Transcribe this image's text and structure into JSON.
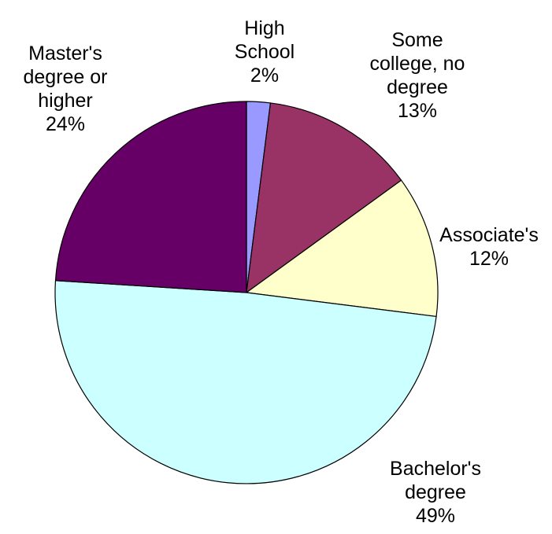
{
  "chart_data": {
    "type": "pie",
    "title": "",
    "start_angle_deg": 0,
    "direction": "clockwise",
    "slices": [
      {
        "label_lines": [
          "High",
          "School"
        ],
        "label": "High School",
        "value": 2,
        "value_label": "2%",
        "color": "#9999ff"
      },
      {
        "label_lines": [
          "Some",
          "college, no",
          "degree"
        ],
        "label": "Some college, no degree",
        "value": 13,
        "value_label": "13%",
        "color": "#993366"
      },
      {
        "label_lines": [
          "Associate's"
        ],
        "label": "Associate's",
        "value": 12,
        "value_label": "12%",
        "color": "#ffffcc"
      },
      {
        "label_lines": [
          "Bachelor's",
          "degree"
        ],
        "label": "Bachelor's degree",
        "value": 49,
        "value_label": "49%",
        "color": "#ccffff"
      },
      {
        "label_lines": [
          "Master's",
          "degree or",
          "higher"
        ],
        "label": "Master's degree or higher",
        "value": 24,
        "value_label": "24%",
        "color": "#660066"
      }
    ]
  }
}
